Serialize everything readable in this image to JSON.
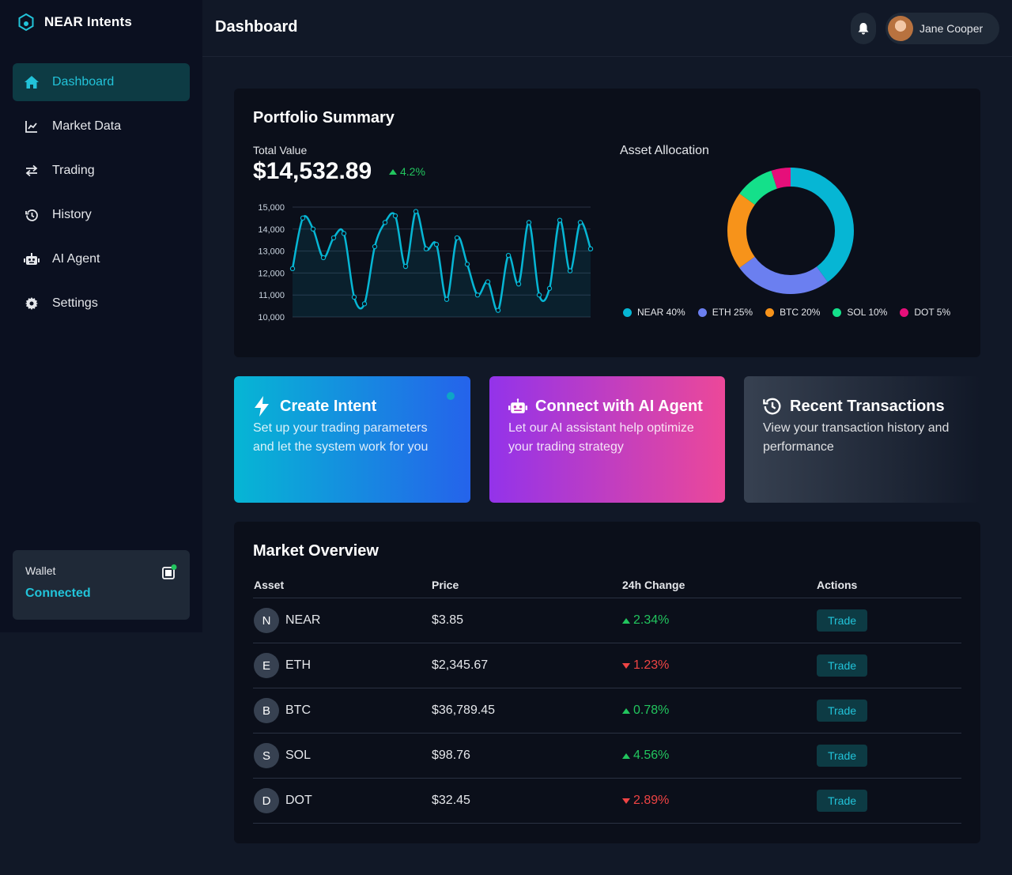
{
  "brand": {
    "name": "NEAR Intents"
  },
  "sidebar": {
    "items": [
      {
        "label": "Dashboard",
        "icon": "home-icon",
        "active": true
      },
      {
        "label": "Market Data",
        "icon": "chart-line-icon"
      },
      {
        "label": "Trading",
        "icon": "exchange-icon"
      },
      {
        "label": "History",
        "icon": "history-icon"
      },
      {
        "label": "AI Agent",
        "icon": "robot-icon"
      },
      {
        "label": "Settings",
        "icon": "gear-icon"
      }
    ],
    "wallet": {
      "label": "Wallet",
      "status": "Connected"
    }
  },
  "header": {
    "title": "Dashboard",
    "user": "Jane Cooper"
  },
  "portfolio": {
    "title": "Portfolio Summary",
    "total_label": "Total Value",
    "total_value": "$14,532.89",
    "change": "4.2%",
    "allocation_title": "Asset Allocation"
  },
  "chart_data": [
    {
      "type": "line",
      "ylim": [
        10000,
        15000
      ],
      "yticks": [
        "15,000",
        "14,000",
        "13,000",
        "12,000",
        "11,000",
        "10,000"
      ],
      "x": [
        0,
        1,
        2,
        3,
        4,
        5,
        6,
        7,
        8,
        9,
        10,
        11,
        12,
        13,
        14,
        15,
        16,
        17,
        18,
        19,
        20,
        21,
        22,
        23,
        24,
        25,
        26,
        27,
        28,
        29
      ],
      "values": [
        12200,
        14500,
        14000,
        12700,
        13600,
        13800,
        10900,
        10600,
        13200,
        14300,
        14600,
        12300,
        14800,
        13100,
        13300,
        10800,
        13600,
        12400,
        11000,
        11600,
        10300,
        12800,
        11500,
        14300,
        11000,
        11300,
        14400,
        12100,
        14300,
        13100
      ],
      "colors": {
        "line": "#06b6d4"
      }
    },
    {
      "type": "pie",
      "categories": [
        "NEAR",
        "ETH",
        "BTC",
        "SOL",
        "DOT"
      ],
      "values": [
        40,
        25,
        20,
        10,
        5
      ],
      "legend": [
        "NEAR 40%",
        "ETH 25%",
        "BTC 20%",
        "SOL 10%",
        "DOT 5%"
      ],
      "colors": [
        "#06b6d4",
        "#6b7ff0",
        "#f7931a",
        "#14e08a",
        "#e60f7a"
      ]
    }
  ],
  "actions": [
    {
      "title": "Create Intent",
      "desc": "Set up your trading parameters and let the system work for you",
      "icon": "bolt-icon"
    },
    {
      "title": "Connect with AI Agent",
      "desc": "Let our AI assistant help optimize your trading strategy",
      "icon": "robot-icon"
    },
    {
      "title": "Recent Transactions",
      "desc": "View your transaction history and performance",
      "icon": "history-icon"
    }
  ],
  "market": {
    "title": "Market Overview",
    "headers": [
      "Asset",
      "Price",
      "24h Change",
      "Actions"
    ],
    "rows": [
      {
        "letter": "N",
        "asset": "NEAR",
        "price": "$3.85",
        "change": "2.34%",
        "dir": "up",
        "action": "Trade"
      },
      {
        "letter": "E",
        "asset": "ETH",
        "price": "$2,345.67",
        "change": "1.23%",
        "dir": "down",
        "action": "Trade"
      },
      {
        "letter": "B",
        "asset": "BTC",
        "price": "$36,789.45",
        "change": "0.78%",
        "dir": "up",
        "action": "Trade"
      },
      {
        "letter": "S",
        "asset": "SOL",
        "price": "$98.76",
        "change": "4.56%",
        "dir": "up",
        "action": "Trade"
      },
      {
        "letter": "D",
        "asset": "DOT",
        "price": "$32.45",
        "change": "2.89%",
        "dir": "down",
        "action": "Trade"
      }
    ]
  },
  "colors": {
    "accent": "#22c3d9",
    "up": "#22c55e",
    "down": "#ef4444"
  }
}
